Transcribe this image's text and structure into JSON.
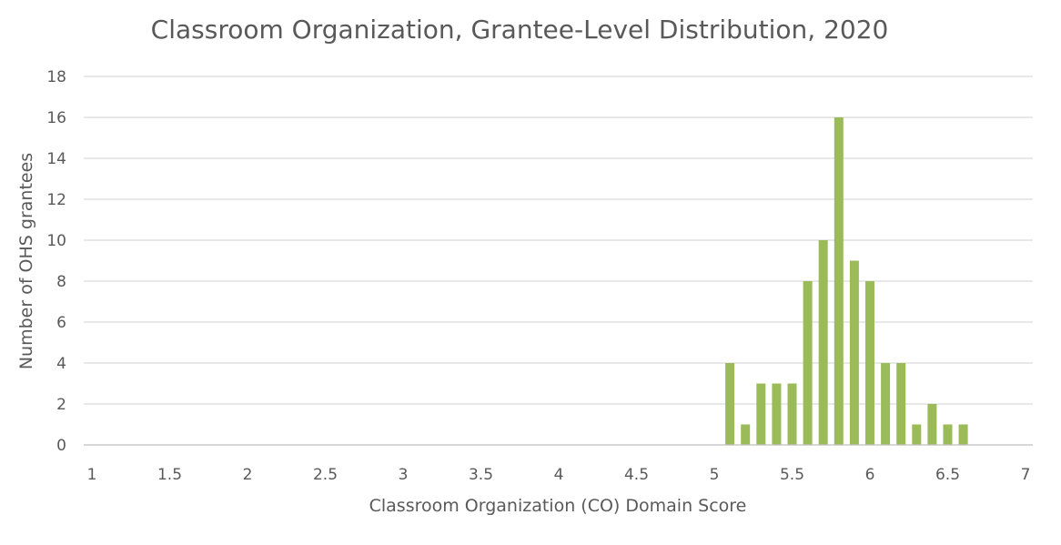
{
  "chart_data": {
    "type": "bar",
    "title": "Classroom Organization, Grantee-Level Distribution, 2020",
    "xlabel": "Classroom Organization (CO) Domain Score",
    "ylabel": "Number of OHS grantees",
    "xlim": [
      1,
      7
    ],
    "ylim": [
      0,
      18
    ],
    "x_ticks": [
      "1",
      "1.5",
      "2",
      "2.5",
      "3",
      "3.5",
      "4",
      "4.5",
      "5",
      "5.5",
      "6",
      "6.5",
      "7"
    ],
    "y_ticks": [
      "0",
      "2",
      "4",
      "6",
      "8",
      "10",
      "12",
      "14",
      "16",
      "18"
    ],
    "x": [
      5.1,
      5.2,
      5.3,
      5.4,
      5.5,
      5.6,
      5.7,
      5.8,
      5.9,
      6.0,
      6.1,
      6.2,
      6.3,
      6.4,
      6.5,
      6.6
    ],
    "values": [
      4,
      1,
      3,
      3,
      3,
      8,
      10,
      16,
      9,
      8,
      4,
      4,
      1,
      2,
      1,
      1
    ],
    "grid": "horizontal",
    "legend": "none",
    "bar_color": "#9bbb59"
  }
}
